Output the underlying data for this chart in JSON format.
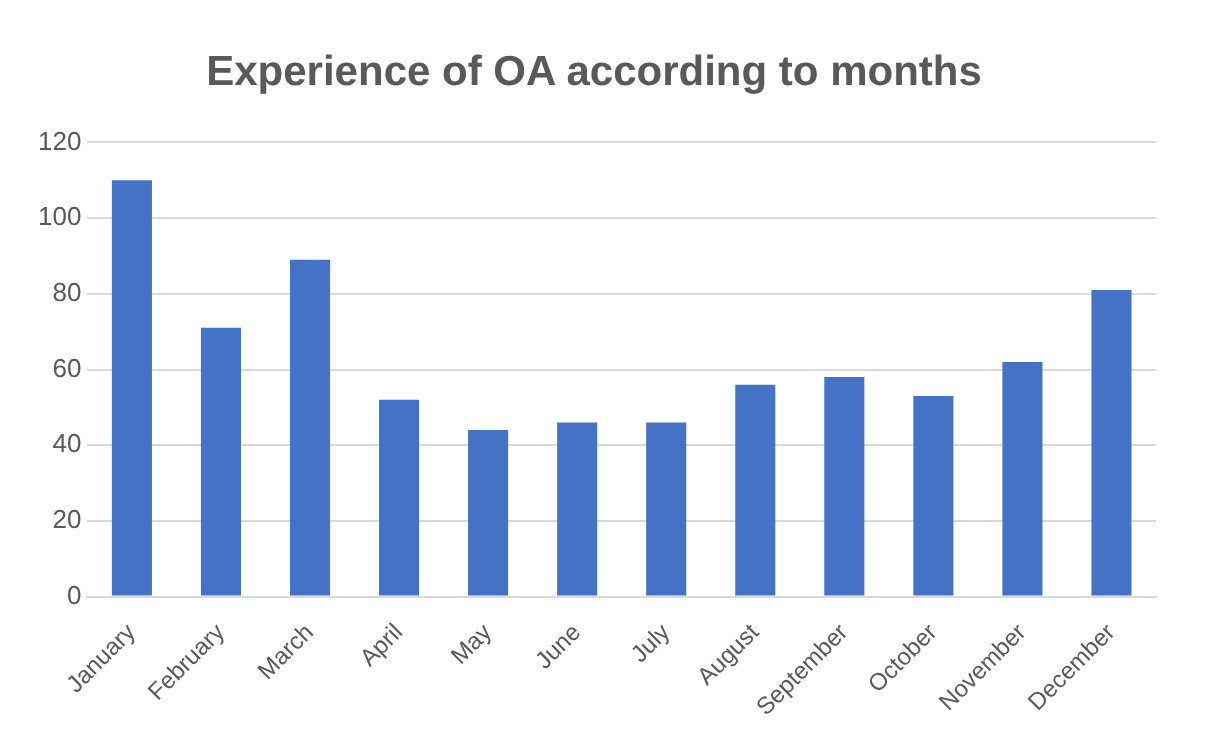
{
  "chart_data": {
    "type": "bar",
    "title": "Experience of OA according to months",
    "categories": [
      "January",
      "February",
      "March",
      "April",
      "May",
      "June",
      "July",
      "August",
      "September",
      "October",
      "November",
      "December"
    ],
    "values": [
      110,
      71,
      89,
      52,
      44,
      46,
      46,
      56,
      58,
      53,
      62,
      81
    ],
    "color": "#4472c4",
    "ylim": [
      0,
      120
    ],
    "yticks": [
      0,
      20,
      40,
      60,
      80,
      100,
      120
    ],
    "grid": "y",
    "legend": false
  }
}
